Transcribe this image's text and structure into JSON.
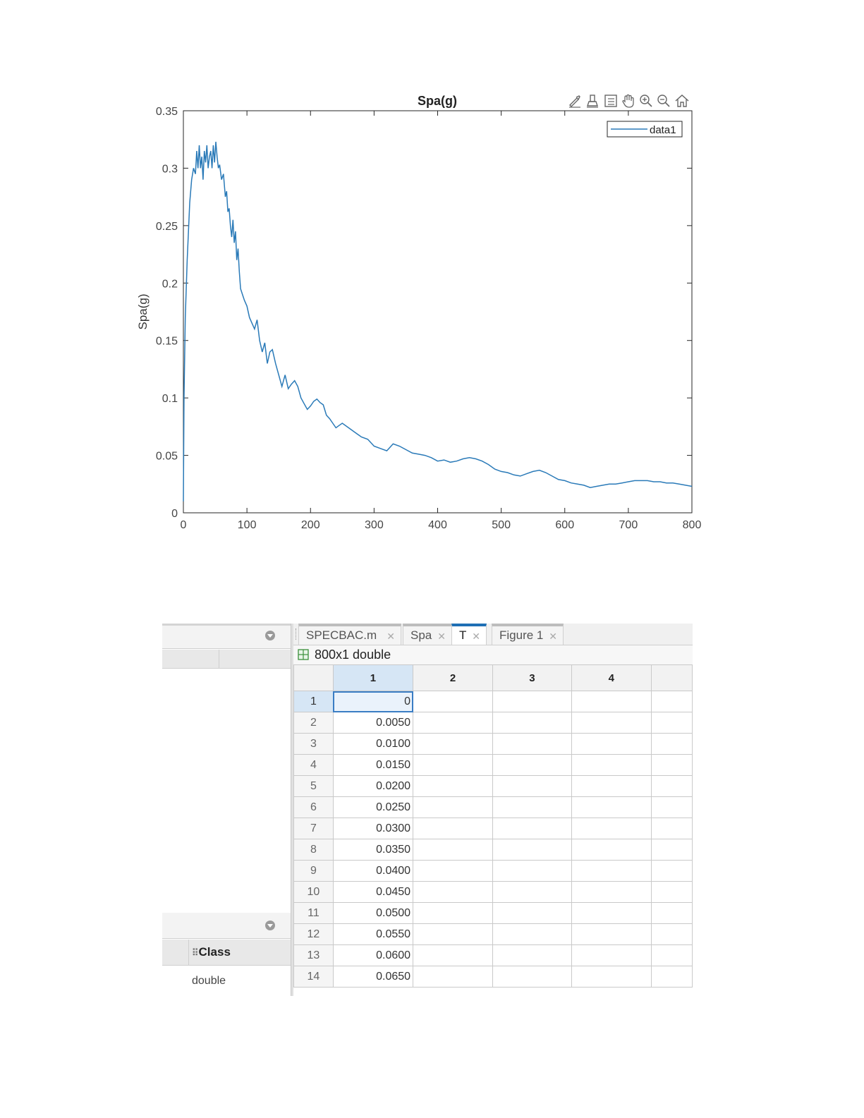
{
  "chart_data": {
    "type": "line",
    "title": "Spa(g)",
    "xlabel": "",
    "ylabel": "Spa(g)",
    "xlim": [
      0,
      800
    ],
    "ylim": [
      0,
      0.35
    ],
    "xticks": [
      "0",
      "100",
      "200",
      "300",
      "400",
      "500",
      "600",
      "700",
      "800"
    ],
    "yticks": [
      "0",
      "0.05",
      "0.1",
      "0.15",
      "0.2",
      "0.25",
      "0.3",
      "0.35"
    ],
    "legend": {
      "position": "top-right",
      "entries": [
        "data1"
      ]
    },
    "grid": false,
    "series": [
      {
        "name": "data1",
        "color": "#2a7ab8",
        "x": [
          0,
          1,
          3,
          6,
          10,
          13,
          16,
          19,
          21,
          23,
          25,
          27,
          29,
          31,
          33,
          35,
          37,
          39,
          41,
          43,
          45,
          47,
          49,
          51,
          53,
          55,
          57,
          60,
          63,
          66,
          68,
          70,
          72,
          74,
          76,
          78,
          80,
          82,
          84,
          86,
          88,
          90,
          93,
          96,
          100,
          104,
          108,
          112,
          116,
          120,
          124,
          128,
          132,
          136,
          140,
          145,
          150,
          155,
          160,
          165,
          170,
          175,
          180,
          185,
          190,
          195,
          200,
          205,
          210,
          215,
          220,
          225,
          230,
          235,
          240,
          245,
          250,
          260,
          270,
          280,
          290,
          300,
          310,
          320,
          330,
          340,
          350,
          360,
          370,
          380,
          390,
          400,
          410,
          420,
          430,
          440,
          450,
          460,
          470,
          480,
          490,
          500,
          510,
          520,
          530,
          540,
          550,
          560,
          570,
          580,
          590,
          600,
          610,
          620,
          630,
          640,
          650,
          660,
          670,
          680,
          690,
          700,
          710,
          720,
          730,
          740,
          750,
          760,
          770,
          780,
          790,
          800
        ],
        "y": [
          0.01,
          0.1,
          0.17,
          0.22,
          0.27,
          0.29,
          0.3,
          0.295,
          0.315,
          0.3,
          0.32,
          0.3,
          0.31,
          0.29,
          0.315,
          0.305,
          0.32,
          0.3,
          0.31,
          0.315,
          0.3,
          0.32,
          0.305,
          0.323,
          0.31,
          0.3,
          0.303,
          0.29,
          0.295,
          0.275,
          0.28,
          0.262,
          0.265,
          0.25,
          0.24,
          0.255,
          0.235,
          0.245,
          0.22,
          0.23,
          0.21,
          0.195,
          0.19,
          0.185,
          0.18,
          0.17,
          0.165,
          0.16,
          0.168,
          0.15,
          0.14,
          0.148,
          0.13,
          0.14,
          0.142,
          0.13,
          0.12,
          0.11,
          0.12,
          0.108,
          0.112,
          0.115,
          0.11,
          0.1,
          0.095,
          0.09,
          0.093,
          0.097,
          0.099,
          0.096,
          0.094,
          0.085,
          0.082,
          0.078,
          0.074,
          0.076,
          0.078,
          0.074,
          0.07,
          0.066,
          0.064,
          0.058,
          0.056,
          0.054,
          0.06,
          0.058,
          0.055,
          0.052,
          0.051,
          0.05,
          0.048,
          0.045,
          0.046,
          0.044,
          0.045,
          0.047,
          0.048,
          0.047,
          0.045,
          0.042,
          0.038,
          0.036,
          0.035,
          0.033,
          0.032,
          0.034,
          0.036,
          0.037,
          0.035,
          0.032,
          0.029,
          0.028,
          0.026,
          0.025,
          0.024,
          0.022,
          0.023,
          0.024,
          0.025,
          0.025,
          0.026,
          0.027,
          0.028,
          0.028,
          0.028,
          0.027,
          0.027,
          0.026,
          0.026,
          0.025,
          0.024,
          0.023
        ]
      }
    ]
  },
  "toolbar": {
    "icons": [
      "brush-icon",
      "datatip-icon",
      "legend-icon",
      "pan-icon",
      "zoom-in-icon",
      "zoom-out-icon",
      "home-icon"
    ]
  },
  "workspace": {
    "class_header": "Class",
    "class_value": "double"
  },
  "editor": {
    "tabs": [
      {
        "label": "SPECBAC.m",
        "active": false
      },
      {
        "label": "Spa",
        "active": false
      },
      {
        "label": "T",
        "active": true
      },
      {
        "label": "Figure 1",
        "active": false
      }
    ],
    "size_label": "800x1 double",
    "columns": [
      "1",
      "2",
      "3",
      "4",
      ""
    ],
    "rows": [
      {
        "index": "1",
        "value": "0"
      },
      {
        "index": "2",
        "value": "0.0050"
      },
      {
        "index": "3",
        "value": "0.0100"
      },
      {
        "index": "4",
        "value": "0.0150"
      },
      {
        "index": "5",
        "value": "0.0200"
      },
      {
        "index": "6",
        "value": "0.0250"
      },
      {
        "index": "7",
        "value": "0.0300"
      },
      {
        "index": "8",
        "value": "0.0350"
      },
      {
        "index": "9",
        "value": "0.0400"
      },
      {
        "index": "10",
        "value": "0.0450"
      },
      {
        "index": "11",
        "value": "0.0500"
      },
      {
        "index": "12",
        "value": "0.0550"
      },
      {
        "index": "13",
        "value": "0.0600"
      },
      {
        "index": "14",
        "value": "0.0650"
      }
    ]
  }
}
